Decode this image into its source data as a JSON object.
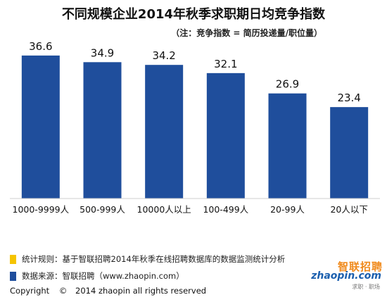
{
  "title": "不同规模企业2014年秋季求职期日均竞争指数",
  "subtitle": "（注：竞争指数 = 简历投递量/职位量）",
  "chart_data": {
    "type": "bar",
    "title": "不同规模企业2014年秋季求职期日均竞争指数",
    "categories": [
      "1000-9999人",
      "500-999人",
      "10000人以上",
      "100-499人",
      "20-99人",
      "20人以下"
    ],
    "values": [
      36.6,
      34.9,
      34.2,
      32.1,
      26.9,
      23.4
    ],
    "ylim": [
      0,
      40
    ],
    "grid": false,
    "bar_color": "#1f4e9c"
  },
  "legend": [
    {
      "text": "统计规则：基于智联招聘2014年秋季在线招聘数据库的数据监测统计分析",
      "color": "#f5c400"
    },
    {
      "text": "数据来源：智联招聘（www.zhaopin.com）",
      "color": "#1f4e9c"
    }
  ],
  "copyright": {
    "word": "Copyright",
    "symbol": "©",
    "text": "2014 zhaopin all rights reserved"
  },
  "logo": {
    "cn": "智联招聘",
    "en": "zhaopin.com",
    "sub": "求职   ·   职场"
  }
}
